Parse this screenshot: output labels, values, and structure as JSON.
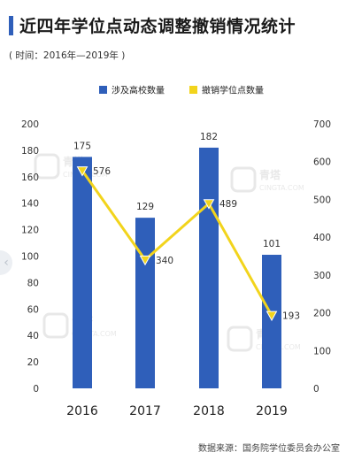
{
  "header": {
    "title": "近四年学位点动态调整撤销情况统计",
    "subtitle": "( 时间：2016年—2019年 )"
  },
  "footer": {
    "source": "数据来源：国务院学位委员会办公室"
  },
  "watermark": {
    "brand_cn": "青塔",
    "brand_en": "CINGTA.COM"
  },
  "colors": {
    "bar": "#2f5fba",
    "line": "#f2d41c",
    "title_accent": "#2f5fba"
  },
  "chart_data": {
    "type": "bar",
    "categories": [
      "2016",
      "2017",
      "2018",
      "2019"
    ],
    "series": [
      {
        "name": "涉及高校数量",
        "type": "bar",
        "axis": "left",
        "values": [
          175,
          129,
          182,
          101
        ]
      },
      {
        "name": "撤销学位点数量",
        "type": "line",
        "axis": "right",
        "values": [
          576,
          340,
          489,
          193
        ]
      }
    ],
    "ylim_left": [
      0,
      200
    ],
    "ylim_right": [
      0,
      700
    ],
    "left_ticks": [
      0,
      20,
      40,
      60,
      80,
      100,
      120,
      140,
      160,
      180,
      200
    ],
    "right_ticks": [
      0,
      100,
      200,
      300,
      400,
      500,
      600,
      700
    ],
    "legend_position": "top-center",
    "grid": false
  }
}
